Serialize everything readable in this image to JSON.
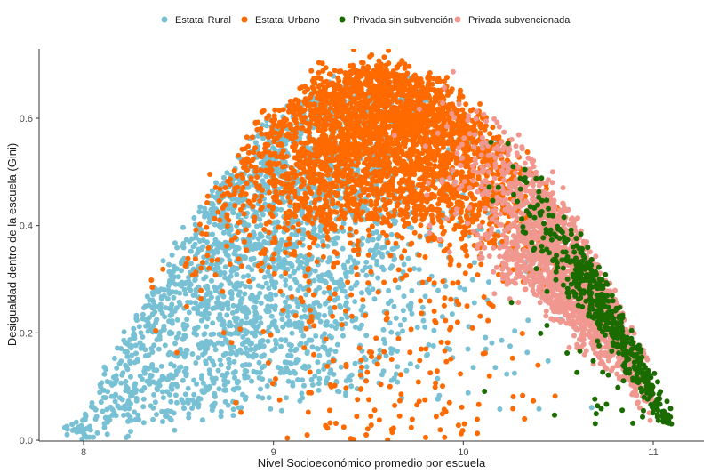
{
  "chart_data": {
    "type": "scatter",
    "xlabel": "Nivel Socioeconómico promedio por escuela",
    "ylabel": "Desigualdad dentro de la escuela (Gini)",
    "xlim": [
      7.75,
      11.25
    ],
    "ylim": [
      0,
      0.73
    ],
    "x_ticks": [
      8,
      9,
      10,
      11
    ],
    "x_tick_labels": [
      "8",
      "9",
      "10",
      "11"
    ],
    "y_ticks": [
      0,
      0.2,
      0.4,
      0.6
    ],
    "y_tick_labels": [
      "0.0",
      "0.2",
      "0.4",
      "0.6"
    ],
    "grid": false,
    "legend_position": "top",
    "series": [
      {
        "name": "Estatal Rural",
        "color": "#78c1d4",
        "approx_count": 2600,
        "x_range": [
          7.9,
          10.9
        ],
        "center_x": 9.0,
        "typical_y": [
          0.0,
          0.65
        ]
      },
      {
        "name": "Estatal Urbano",
        "color": "#ff6a00",
        "approx_count": 3400,
        "x_range": [
          8.0,
          10.6
        ],
        "center_x": 9.6,
        "typical_y": [
          0.15,
          0.69
        ]
      },
      {
        "name": "Privada sin subvención",
        "color": "#1a6b00",
        "approx_count": 550,
        "x_range": [
          9.8,
          11.1
        ],
        "center_x": 10.8,
        "typical_y": [
          0.03,
          0.55
        ]
      },
      {
        "name": "Privada subvencionada",
        "color": "#f09890",
        "approx_count": 1800,
        "x_range": [
          9.6,
          11.0
        ],
        "center_x": 10.5,
        "typical_y": [
          0.05,
          0.55
        ]
      }
    ],
    "envelope_note": "Points bounded above by an inverted-U curve peaking near x=9.5, y=0.7 and falling to ~0.05 at x=11.1"
  }
}
